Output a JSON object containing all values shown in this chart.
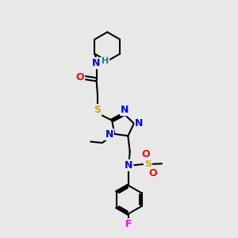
{
  "background_color": "#e8e8e8",
  "atom_colors": {
    "C": "#000000",
    "N": "#0000ff",
    "O": "#ff0000",
    "S": "#ccaa00",
    "F": "#ff00ff",
    "H": "#008888"
  },
  "bond_color": "#000000",
  "bond_width": 1.5,
  "font_size": 9,
  "fig_bg": "#e8e8e8"
}
